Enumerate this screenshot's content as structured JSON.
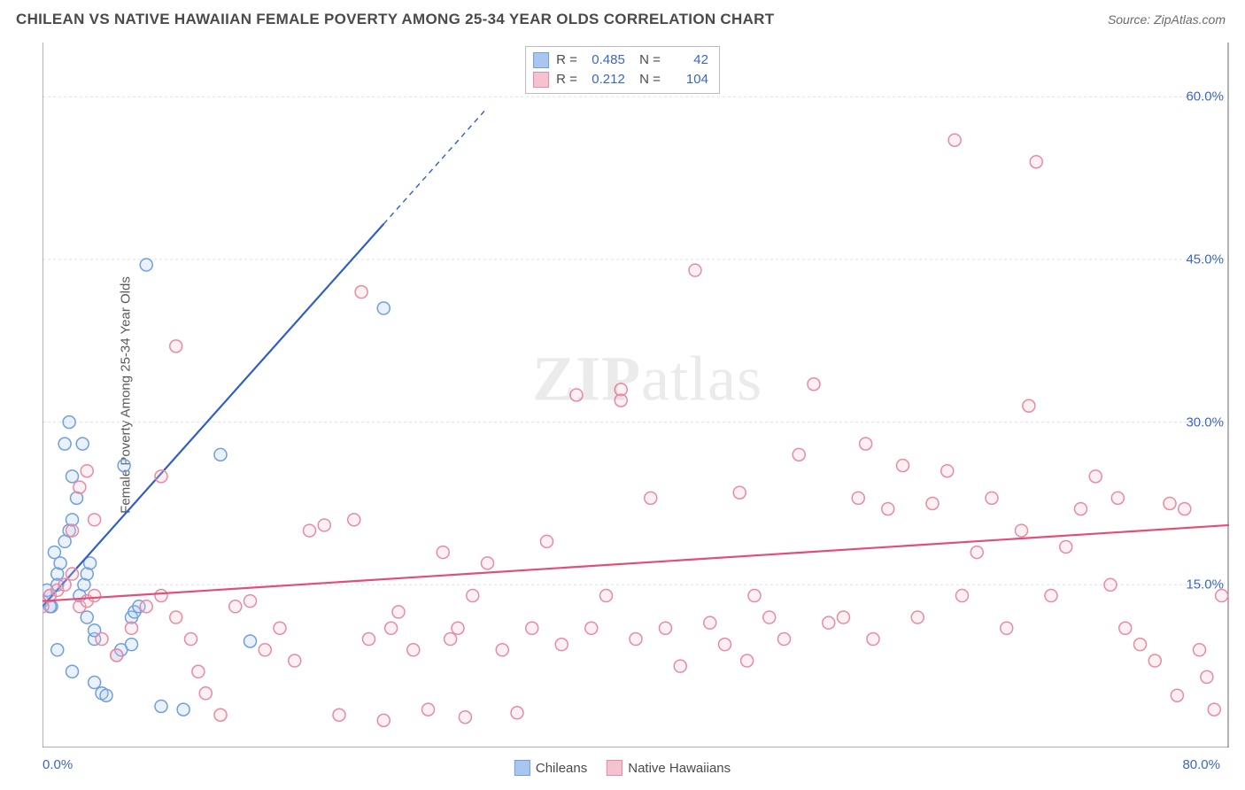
{
  "title": "CHILEAN VS NATIVE HAWAIIAN FEMALE POVERTY AMONG 25-34 YEAR OLDS CORRELATION CHART",
  "source": "Source: ZipAtlas.com",
  "watermark": {
    "part1": "ZIP",
    "part2": "atlas"
  },
  "chart": {
    "type": "scatter",
    "background_color": "#ffffff",
    "grid_color": "#e0e0e0",
    "axis_color": "#808080",
    "xlim": [
      0,
      80
    ],
    "ylim": [
      0,
      65
    ],
    "x_ticks": [
      {
        "v": 0,
        "label": "0.0%"
      },
      {
        "v": 80,
        "label": "80.0%"
      }
    ],
    "y_ticks": [
      {
        "v": 15,
        "label": "15.0%"
      },
      {
        "v": 30,
        "label": "30.0%"
      },
      {
        "v": 45,
        "label": "45.0%"
      },
      {
        "v": 60,
        "label": "60.0%"
      }
    ],
    "y_axis_label": "Female Poverty Among 25-34 Year Olds",
    "tick_color": "#3a66c8",
    "label_fontsize": 15,
    "title_fontsize": 17,
    "marker_radius": 7,
    "marker_stroke_width": 1.5,
    "marker_fill_opacity": 0.25,
    "line_width": 2.2
  },
  "top_legend": {
    "rows": [
      {
        "swatch_fill": "#a9c7ee",
        "swatch_stroke": "#6f9fe0",
        "r_label": "R =",
        "r": "0.485",
        "n_label": "N =",
        "n": "42"
      },
      {
        "swatch_fill": "#f5c3cf",
        "swatch_stroke": "#e88aa3",
        "r_label": "R =",
        "r": "0.212",
        "n_label": "N =",
        "n": "104"
      }
    ]
  },
  "bottom_legend": {
    "items": [
      {
        "label": "Chileans",
        "fill": "#a9c7ee",
        "stroke": "#6f9fe0"
      },
      {
        "label": "Native Hawaiians",
        "fill": "#f5c3cf",
        "stroke": "#e88aa3"
      }
    ]
  },
  "series": [
    {
      "name": "chileans",
      "color_stroke": "#6f9fe0",
      "color_fill": "#a9c7ee",
      "trend": {
        "color": "#2f5fc4",
        "x0": 0,
        "y0": 13,
        "x1": 30,
        "y1": 59,
        "solid_to_x": 23
      },
      "points": [
        [
          0,
          13.5
        ],
        [
          0.5,
          14
        ],
        [
          1,
          15
        ],
        [
          1,
          16
        ],
        [
          1.2,
          17
        ],
        [
          0.8,
          18
        ],
        [
          0.3,
          14.5
        ],
        [
          0.6,
          13
        ],
        [
          1.5,
          19
        ],
        [
          1.8,
          20
        ],
        [
          2,
          21
        ],
        [
          2.3,
          23
        ],
        [
          2.5,
          14
        ],
        [
          2.8,
          15
        ],
        [
          3,
          16
        ],
        [
          3.2,
          17
        ],
        [
          2,
          25
        ],
        [
          1.5,
          28
        ],
        [
          1.8,
          30
        ],
        [
          3.5,
          10
        ],
        [
          3.5,
          10.8
        ],
        [
          2.7,
          28
        ],
        [
          3,
          12
        ],
        [
          3.5,
          6
        ],
        [
          4,
          5
        ],
        [
          4.3,
          4.8
        ],
        [
          8,
          3.8
        ],
        [
          9.5,
          3.5
        ],
        [
          6,
          12
        ],
        [
          6.2,
          12.5
        ],
        [
          6.5,
          13
        ],
        [
          5,
          8.5
        ],
        [
          5.3,
          9
        ],
        [
          5.5,
          26
        ],
        [
          12,
          27
        ],
        [
          7,
          44.5
        ],
        [
          0.5,
          13
        ],
        [
          1,
          9
        ],
        [
          2,
          7
        ],
        [
          6,
          9.5
        ],
        [
          14,
          9.8
        ],
        [
          23,
          40.5
        ]
      ]
    },
    {
      "name": "native_hawaiians",
      "color_stroke": "#e88aa3",
      "color_fill": "#f5c3cf",
      "trend": {
        "color": "#e14f76",
        "x0": 0,
        "y0": 13.5,
        "x1": 80,
        "y1": 20.5,
        "solid_to_x": 80
      },
      "points": [
        [
          0,
          13
        ],
        [
          0.5,
          14
        ],
        [
          1,
          14.5
        ],
        [
          1.5,
          15
        ],
        [
          2,
          16
        ],
        [
          2,
          20
        ],
        [
          2.5,
          24
        ],
        [
          3,
          25.5
        ],
        [
          3.5,
          21
        ],
        [
          2.5,
          13
        ],
        [
          3,
          13.5
        ],
        [
          3.5,
          14
        ],
        [
          4,
          10
        ],
        [
          5,
          8.5
        ],
        [
          6,
          11
        ],
        [
          7,
          13
        ],
        [
          8,
          14
        ],
        [
          8,
          25
        ],
        [
          9,
          37
        ],
        [
          9,
          12
        ],
        [
          10,
          10
        ],
        [
          10.5,
          7
        ],
        [
          11,
          5
        ],
        [
          12,
          3
        ],
        [
          13,
          13
        ],
        [
          14,
          13.5
        ],
        [
          15,
          9
        ],
        [
          16,
          11
        ],
        [
          17,
          8
        ],
        [
          18,
          20
        ],
        [
          19,
          20.5
        ],
        [
          20,
          3
        ],
        [
          21,
          21
        ],
        [
          21.5,
          42
        ],
        [
          22,
          10
        ],
        [
          23,
          2.5
        ],
        [
          23.5,
          11
        ],
        [
          24,
          12.5
        ],
        [
          25,
          9
        ],
        [
          26,
          3.5
        ],
        [
          27,
          18
        ],
        [
          27.5,
          10
        ],
        [
          28,
          11
        ],
        [
          28.5,
          2.8
        ],
        [
          29,
          14
        ],
        [
          30,
          17
        ],
        [
          31,
          9
        ],
        [
          32,
          3.2
        ],
        [
          33,
          11
        ],
        [
          34,
          19
        ],
        [
          35,
          9.5
        ],
        [
          36,
          32.5
        ],
        [
          37,
          11
        ],
        [
          38,
          14
        ],
        [
          39,
          33
        ],
        [
          39,
          32
        ],
        [
          40,
          10
        ],
        [
          41,
          23
        ],
        [
          42,
          11
        ],
        [
          43,
          7.5
        ],
        [
          44,
          44
        ],
        [
          45,
          11.5
        ],
        [
          46,
          9.5
        ],
        [
          47,
          23.5
        ],
        [
          47.5,
          8
        ],
        [
          48,
          14
        ],
        [
          49,
          12
        ],
        [
          50,
          10
        ],
        [
          51,
          27
        ],
        [
          52,
          33.5
        ],
        [
          53,
          11.5
        ],
        [
          54,
          12
        ],
        [
          55,
          23
        ],
        [
          55.5,
          28
        ],
        [
          56,
          10
        ],
        [
          57,
          22
        ],
        [
          58,
          26
        ],
        [
          59,
          12
        ],
        [
          60,
          22.5
        ],
        [
          61,
          25.5
        ],
        [
          61.5,
          56
        ],
        [
          62,
          14
        ],
        [
          63,
          18
        ],
        [
          64,
          23
        ],
        [
          65,
          11
        ],
        [
          66,
          20
        ],
        [
          66.5,
          31.5
        ],
        [
          67,
          54
        ],
        [
          68,
          14
        ],
        [
          69,
          18.5
        ],
        [
          70,
          22
        ],
        [
          71,
          25
        ],
        [
          72,
          15
        ],
        [
          72.5,
          23
        ],
        [
          73,
          11
        ],
        [
          74,
          9.5
        ],
        [
          75,
          8
        ],
        [
          76,
          22.5
        ],
        [
          76.5,
          4.8
        ],
        [
          77,
          22
        ],
        [
          78,
          9
        ],
        [
          78.5,
          6.5
        ],
        [
          79,
          3.5
        ],
        [
          79.5,
          14
        ]
      ]
    }
  ]
}
